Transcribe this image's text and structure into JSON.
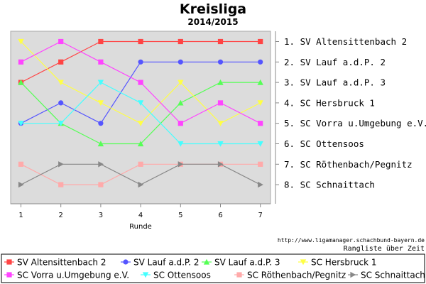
{
  "chart_data": {
    "type": "line",
    "title": "Kreisliga",
    "subtitle": "2014/2015",
    "xlabel": "Runde",
    "ylabel": "",
    "x": [
      1,
      2,
      3,
      4,
      5,
      6,
      7
    ],
    "ylim": [
      8,
      1
    ],
    "y_inverted": true,
    "grid": false,
    "legend_position": "bottom",
    "rank_labels": [
      "1. SV Altensittenbach 2",
      "2. SV Lauf a.d.P. 2",
      "3. SV Lauf a.d.P. 3",
      "4. SC Hersbruck 1",
      "5. SC Vorra u.Umgebung e.V.",
      "6. SC Ottensoos",
      "7. SC Röthenbach/Pegnitz",
      "8. SC Schnaittach"
    ],
    "source_url": "http://www.ligamanager.schachbund-bayern.de",
    "caption": "Rangliste über Zeit",
    "series": [
      {
        "name": "SV Altensittenbach 2",
        "color": "#ff4444",
        "marker": "square",
        "values": [
          3,
          2,
          1,
          1,
          1,
          1,
          1
        ]
      },
      {
        "name": "SV Lauf a.d.P. 2",
        "color": "#5555ff",
        "marker": "circle",
        "values": [
          5,
          4,
          5,
          2,
          2,
          2,
          2
        ]
      },
      {
        "name": "SV Lauf a.d.P. 3",
        "color": "#55ff55",
        "marker": "triangle-up",
        "values": [
          3,
          5,
          6,
          6,
          4,
          3,
          3
        ]
      },
      {
        "name": "SC Hersbruck 1",
        "color": "#ffff44",
        "marker": "triangle-down",
        "values": [
          1,
          3,
          4,
          5,
          3,
          5,
          4
        ]
      },
      {
        "name": "SC Vorra u.Umgebung e.V.",
        "color": "#ff44ff",
        "marker": "square",
        "values": [
          2,
          1,
          2,
          3,
          5,
          4,
          5
        ]
      },
      {
        "name": "SC Ottensoos",
        "color": "#44ffff",
        "marker": "triangle-down",
        "values": [
          5,
          5,
          3,
          4,
          6,
          6,
          6
        ]
      },
      {
        "name": "SC Röthenbach/Pegnitz",
        "color": "#ffaaaa",
        "marker": "square",
        "values": [
          7,
          8,
          8,
          7,
          7,
          7,
          7
        ]
      },
      {
        "name": "SC Schnaittach",
        "color": "#888888",
        "marker": "triangle-right",
        "values": [
          8,
          7,
          7,
          8,
          7,
          7,
          8
        ]
      }
    ]
  }
}
